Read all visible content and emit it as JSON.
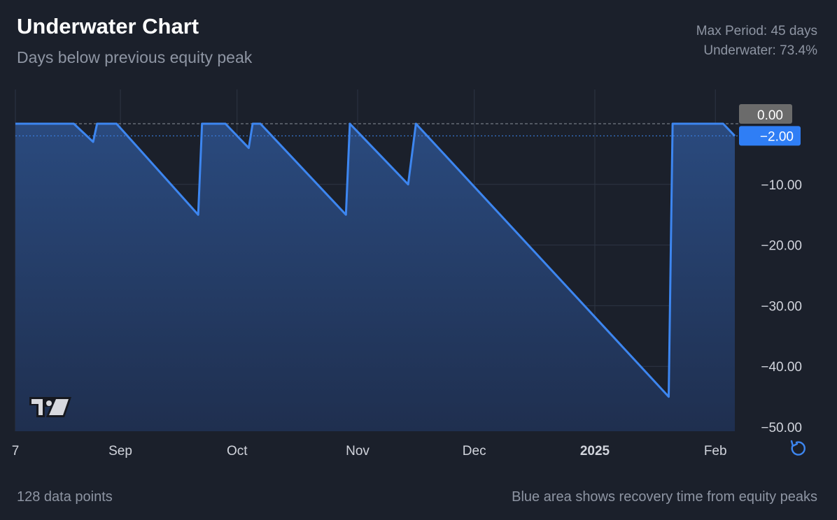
{
  "header": {
    "title": "Underwater Chart",
    "subtitle": "Days below previous equity peak",
    "max_period": "Max Period: 45 days",
    "underwater": "Underwater: 73.4%"
  },
  "footer": {
    "data_points": "128 data points",
    "note": "Blue area shows recovery time from equity peaks"
  },
  "colors": {
    "line": "#3d86f0",
    "background": "#1b202b",
    "badge_current": "#2f7ef5",
    "badge_zero": "#6b6b6b"
  },
  "chart_data": {
    "type": "area",
    "title": "Underwater Chart",
    "x_domain": [
      "2024-08-05",
      "2025-02-06"
    ],
    "ylim": [
      -51,
      5
    ],
    "grid": true,
    "x_ticks": [
      {
        "date": "2024-08-05",
        "label": "7"
      },
      {
        "date": "2024-09-01",
        "label": "Sep"
      },
      {
        "date": "2024-10-01",
        "label": "Oct"
      },
      {
        "date": "2024-11-01",
        "label": "Nov"
      },
      {
        "date": "2024-12-01",
        "label": "Dec"
      },
      {
        "date": "2025-01-01",
        "label": "2025"
      },
      {
        "date": "2025-02-01",
        "label": "Feb"
      }
    ],
    "y_ticks": [
      {
        "value": -10,
        "label": "−10.00"
      },
      {
        "value": -20,
        "label": "−20.00"
      },
      {
        "value": -30,
        "label": "−30.00"
      },
      {
        "value": -40,
        "label": "−40.00"
      },
      {
        "value": -50,
        "label": "−50.00"
      }
    ],
    "zero_label": {
      "value": 0,
      "label": "0.00"
    },
    "current_label": {
      "value": -2,
      "label": "−2.00"
    },
    "points": [
      [
        "2024-08-05",
        0
      ],
      [
        "2024-08-20",
        0
      ],
      [
        "2024-08-25",
        -3
      ],
      [
        "2024-08-26",
        0
      ],
      [
        "2024-08-31",
        0
      ],
      [
        "2024-09-21",
        -15
      ],
      [
        "2024-09-22",
        0
      ],
      [
        "2024-09-28",
        0
      ],
      [
        "2024-10-04",
        -4
      ],
      [
        "2024-10-05",
        0
      ],
      [
        "2024-10-07",
        0
      ],
      [
        "2024-10-29",
        -15
      ],
      [
        "2024-10-30",
        0
      ],
      [
        "2024-11-14",
        -10
      ],
      [
        "2024-11-16",
        0
      ],
      [
        "2025-01-20",
        -45
      ],
      [
        "2025-01-21",
        0
      ],
      [
        "2025-02-03",
        0
      ],
      [
        "2025-02-06",
        -2
      ]
    ]
  }
}
